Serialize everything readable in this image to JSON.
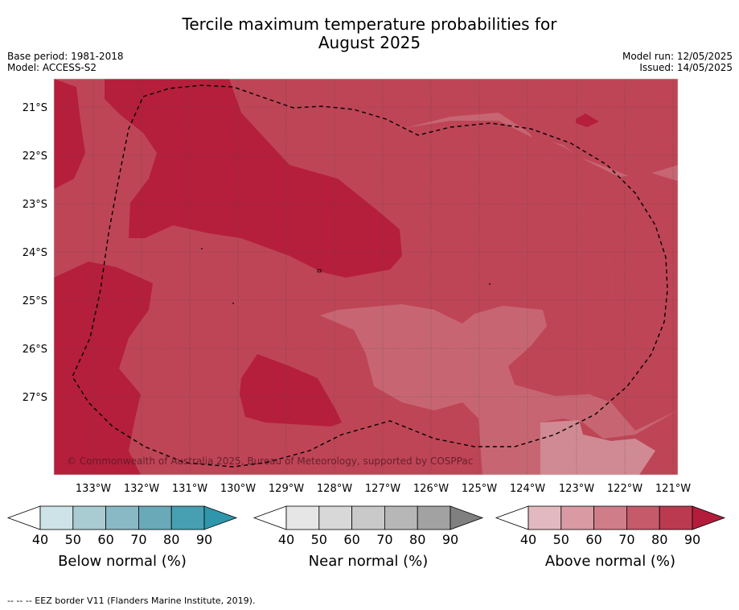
{
  "header": {
    "title_line1": "Tercile maximum temperature probabilities for",
    "title_line2": "August 2025",
    "base_period": "Base period: 1981-2018",
    "model": "Model: ACCESS-S2",
    "model_run": "Model run: 12/05/2025",
    "issued": "Issued: 14/05/2025"
  },
  "map": {
    "y_ticks": [
      "21°S",
      "22°S",
      "23°S",
      "24°S",
      "25°S",
      "26°S",
      "27°S"
    ],
    "x_ticks": [
      "133°W",
      "132°W",
      "131°W",
      "130°W",
      "129°W",
      "128°W",
      "127°W",
      "126°W",
      "125°W",
      "124°W",
      "123°W",
      "122°W",
      "121°W"
    ],
    "copyright": "© Commonwealth of Australia 2025, Bureau of Meteorology, supported by COSPPac",
    "colors": {
      "above_50": "#d08a93",
      "above_60": "#c76672",
      "above_70": "#be4556",
      "above_80": "#b51f3b"
    }
  },
  "chart_data": {
    "type": "heatmap",
    "title": "Tercile maximum temperature probabilities for August 2025",
    "variable": "Above normal maximum temperature probability (%)",
    "lat_range": [
      -28.2,
      -20.4
    ],
    "lon_range": [
      -133.8,
      -120.9
    ],
    "levels": [
      50,
      60,
      70,
      80
    ],
    "regions": [
      {
        "level": 70,
        "description": "background field across most of domain"
      },
      {
        "level": 80,
        "description": "north-west band from 133°W to 127°W, 21°S–25°S"
      },
      {
        "level": 80,
        "description": "western margin 25°S–28°S"
      },
      {
        "level": 80,
        "description": "pocket near 130°W–128°W, 26°S–27.5°S"
      },
      {
        "level": 60,
        "description": "central-east tongue from 125°W to 122°W, 21°S–28°S"
      },
      {
        "level": 50,
        "description": "south-east corner near 123°W–121°W, 27.5°S–28°S"
      }
    ]
  },
  "colorbars": [
    {
      "label": "Below normal (%)",
      "ticks": [
        "40",
        "50",
        "60",
        "70",
        "80",
        "90"
      ],
      "colors": [
        "#ffffff",
        "#cde3e7",
        "#a9cbd2",
        "#89b9c4",
        "#6aa9b8",
        "#47a0b2",
        "#2f96ab"
      ]
    },
    {
      "label": "Near normal (%)",
      "ticks": [
        "40",
        "50",
        "60",
        "70",
        "80",
        "90"
      ],
      "colors": [
        "#ffffff",
        "#e6e6e6",
        "#d8d8d8",
        "#c9c9c9",
        "#b7b7b7",
        "#a2a2a2",
        "#808080"
      ]
    },
    {
      "label": "Above normal (%)",
      "ticks": [
        "40",
        "50",
        "60",
        "70",
        "80",
        "90"
      ],
      "colors": [
        "#ffffff",
        "#e3b9c0",
        "#d99aa3",
        "#cf7d88",
        "#c55a6a",
        "#bb3a4f",
        "#b31d3b"
      ]
    }
  ],
  "footnote": "-- -- -- EEZ border V11 (Flanders Marine Institute, 2019)."
}
